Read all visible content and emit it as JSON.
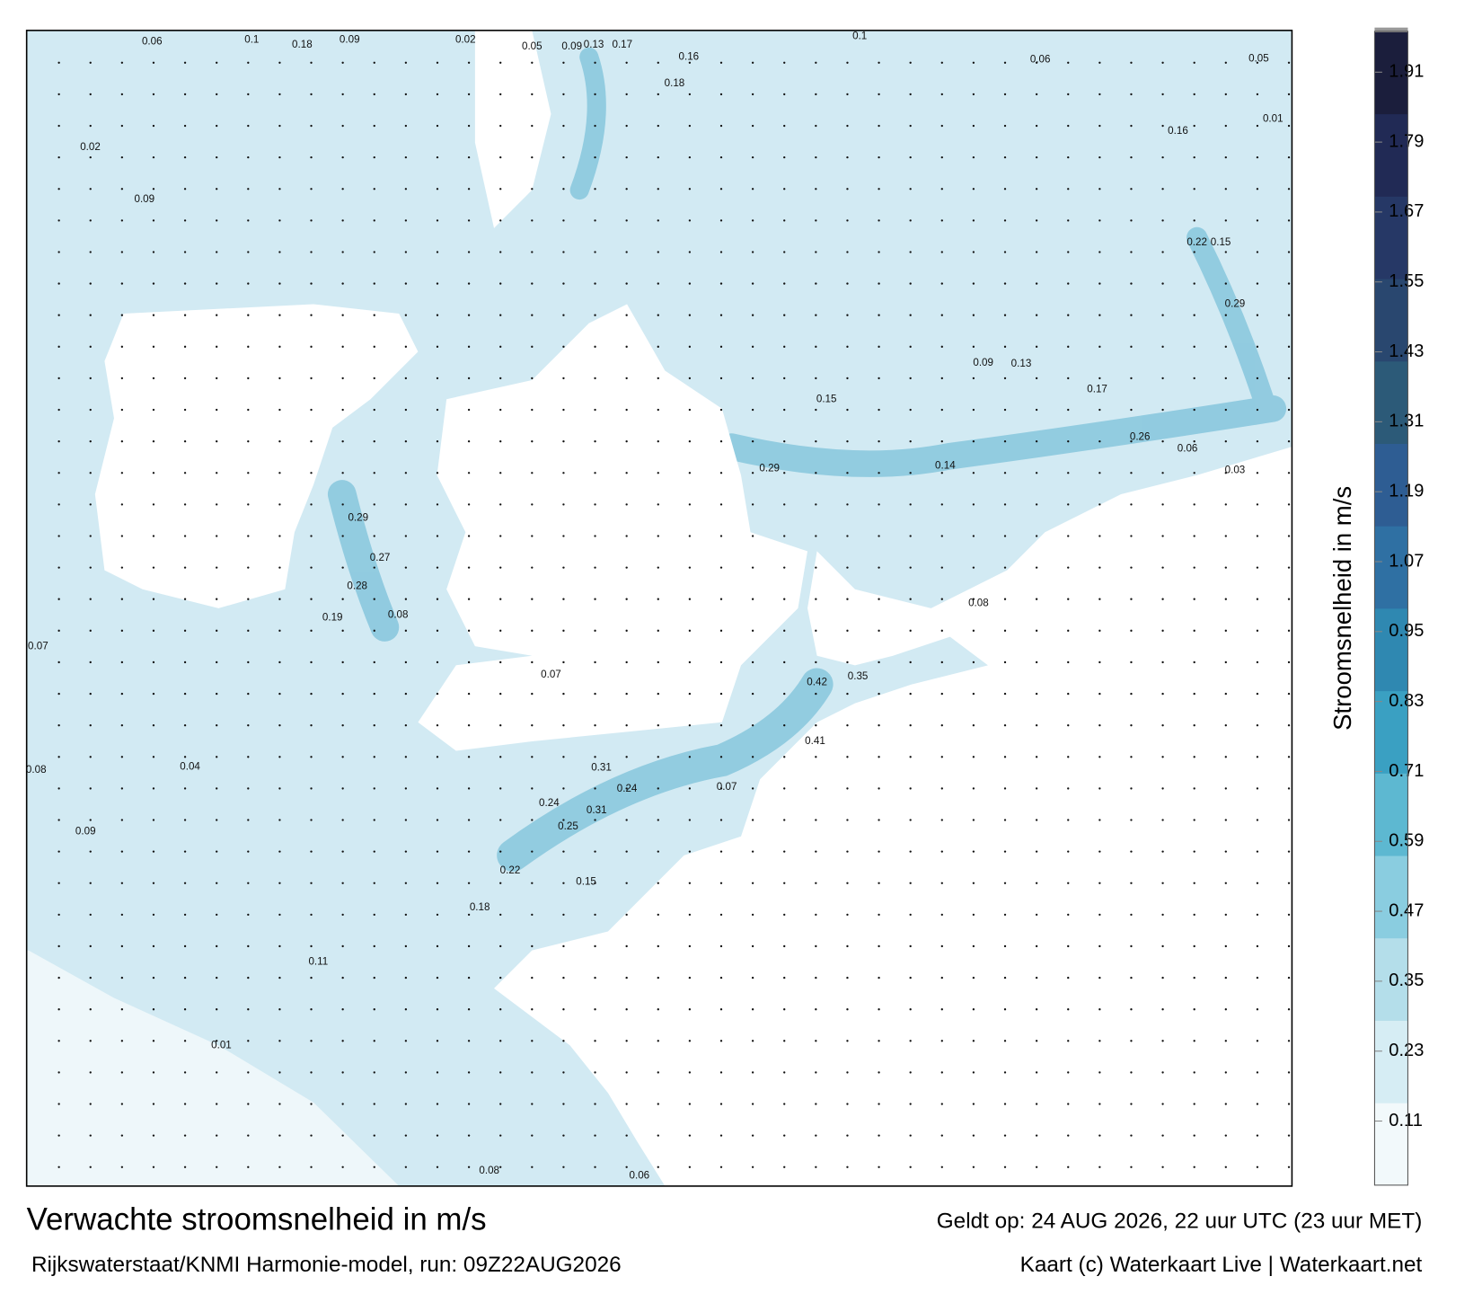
{
  "map": {
    "colorbar": {
      "label": "Stroomsnelheid in m/s",
      "range": [
        0,
        1.98
      ],
      "ticks": [
        0.11,
        0.23,
        0.35,
        0.47,
        0.59,
        0.71,
        0.83,
        0.95,
        1.07,
        1.19,
        1.31,
        1.43,
        1.55,
        1.67,
        1.79,
        1.91
      ],
      "colors": [
        "#f2f9fb",
        "#d6edf4",
        "#b4deea",
        "#8acde0",
        "#5db8d1",
        "#3aa0c2",
        "#2f88b1",
        "#2f70a3",
        "#2e5d93",
        "#2c5a78",
        "#29476f",
        "#263866",
        "#212a55",
        "#1b1e3c"
      ]
    },
    "speed_labels": [
      0.06,
      0.1,
      0.18,
      0.09,
      0.02,
      0.05,
      0.09,
      0.13,
      0.17,
      0.16,
      0.1,
      0.06,
      0.05,
      0.01,
      0.02,
      0.09,
      0.18,
      0.16,
      0.22,
      0.15,
      0.29,
      0.17,
      0.26,
      0.06,
      0.15,
      0.29,
      0.14,
      0.08,
      0.42,
      0.35,
      0.41,
      0.29,
      0.27,
      0.28,
      0.08,
      0.19,
      0.31,
      0.24,
      0.24,
      0.31,
      0.25,
      0.22,
      0.15,
      0.18,
      0.11,
      0.01,
      0.08,
      0.06,
      0.03,
      0.13,
      0.09,
      0.07,
      0.07,
      0.07,
      0.08,
      0.09,
      0.04
    ]
  },
  "footer": {
    "title": "Verwachte stroomsnelheid in m/s",
    "valid": "Geldt op: 24 AUG 2026, 22 uur UTC (23 uur MET)",
    "source": "Rijkswaterstaat/KNMI Harmonie-model, run: 09Z22AUG2026",
    "credit": "Kaart (c) Waterkaart Live | Waterkaart.net"
  }
}
